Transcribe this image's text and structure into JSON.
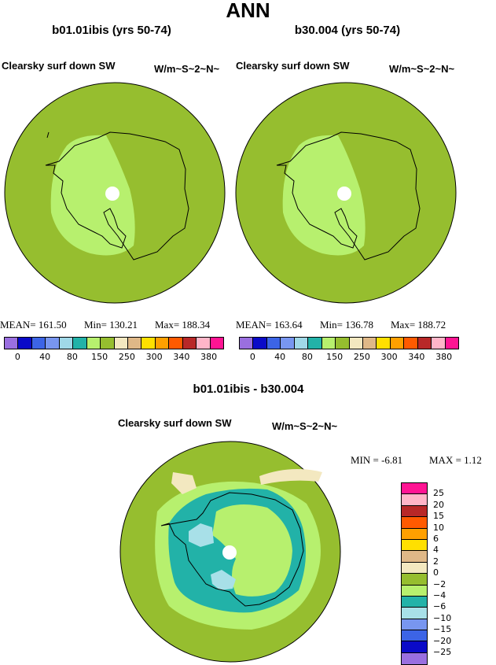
{
  "title": "ANN",
  "panels": [
    {
      "title": "b01.01ibis (yrs 50-74)",
      "subtitle": "Clearsky surf down SW",
      "units": "W/m~S~2~N~",
      "mean": "MEAN= 161.50",
      "min": "Min= 130.21",
      "max": "Max= 188.34"
    },
    {
      "title": "b30.004 (yrs 50-74)",
      "subtitle": "Clearsky surf down SW",
      "units": "W/m~S~2~N~",
      "mean": "MEAN= 163.64",
      "min": "Min= 136.78",
      "max": "Max= 188.72"
    }
  ],
  "diff": {
    "title": "b01.01ibis - b30.004",
    "subtitle": "Clearsky surf down SW",
    "units": "W/m~S~2~N~",
    "min": "MIN =   -6.81",
    "max": "MAX =    1.12"
  },
  "colorbar_top": {
    "colors": [
      "#9a6fe0",
      "#0a0ac8",
      "#3c64e6",
      "#7896f0",
      "#a0d8e8",
      "#22b2a8",
      "#b7f06e",
      "#96be2f",
      "#f3e8c0",
      "#dfb887",
      "#ffe000",
      "#ffa000",
      "#ff5a00",
      "#b82828",
      "#ffb5c8",
      "#ff1493"
    ],
    "labels": [
      "0",
      "40",
      "80",
      "150",
      "250",
      "300",
      "340",
      "380"
    ]
  },
  "colorbar_diff": {
    "colors": [
      "#ff1493",
      "#ffb5c8",
      "#b82828",
      "#ff5a00",
      "#ffa000",
      "#ffe000",
      "#dfb887",
      "#f3e8c0",
      "#96be2f",
      "#b7f06e",
      "#22b2a8",
      "#a8e0e8",
      "#7896f0",
      "#3c64e6",
      "#0a0ac8",
      "#9a6fe0"
    ],
    "labels": [
      "25",
      "20",
      "15",
      "10",
      "6",
      "4",
      "2",
      "0",
      "−2",
      "−4",
      "−6",
      "−10",
      "−15",
      "−20",
      "−25"
    ]
  },
  "map_colors": {
    "ocean": "#96be2f",
    "light": "#b7f06e",
    "teal": "#22b2a8",
    "cyan": "#a8e0e8",
    "tan": "#f3e8c0"
  }
}
